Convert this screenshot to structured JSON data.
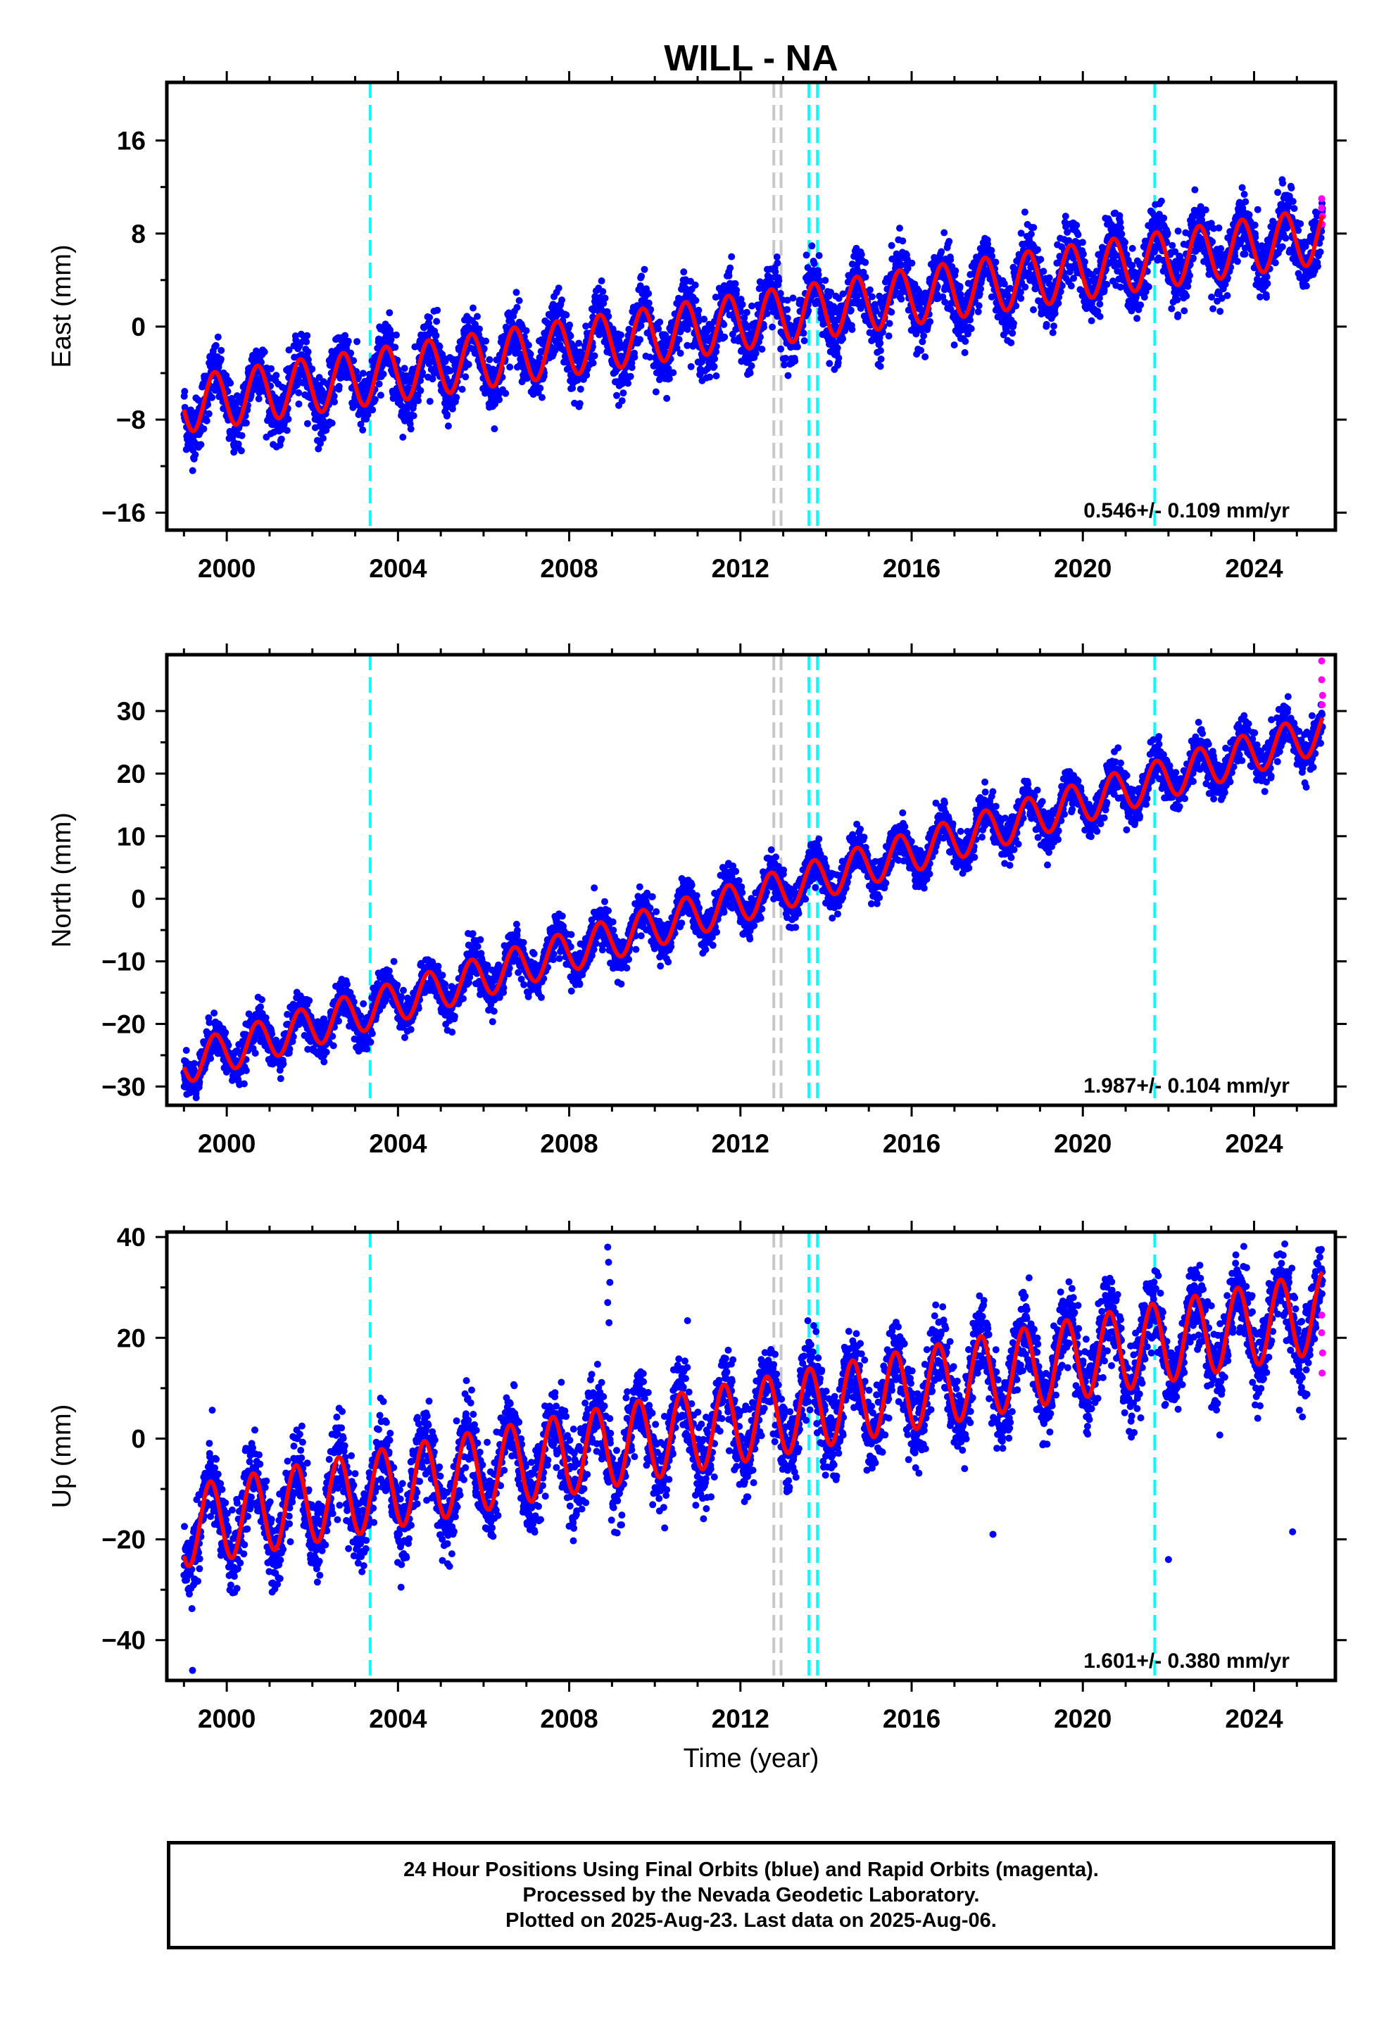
{
  "title": "WILL - NA",
  "colors": {
    "final_orbits": "#0000ff",
    "rapid_orbits": "#ff00ff",
    "model_fit": "#ff0000",
    "antenna_change": "#00ffff",
    "other_event": "#c8c8c8",
    "frame": "#000000"
  },
  "xlabel": "Time (year)",
  "x_ticks": [
    "2000",
    "2004",
    "2008",
    "2012",
    "2016",
    "2020",
    "2024"
  ],
  "footer": {
    "line1": "24 Hour Positions Using Final Orbits (blue) and Rapid Orbits (magenta).",
    "line2": "Processed by the Nevada Geodetic Laboratory.",
    "line3": "Plotted on 2025-Aug-23. Last data on 2025-Aug-06."
  },
  "chart_data": [
    {
      "type": "scatter",
      "ylabel": "East (mm)",
      "rate_text": "0.546+/- 0.109 mm/yr",
      "xlim": [
        1998.6,
        2025.9
      ],
      "ylim": [
        -17.5,
        21
      ],
      "y_ticks": [
        -16,
        -8,
        0,
        8,
        16
      ],
      "y_tick_labels": [
        "−16",
        "−8",
        "0",
        "8",
        "16"
      ],
      "vlines": [
        {
          "x": 2003.35,
          "color": "#00ffff"
        },
        {
          "x": 2012.78,
          "color": "#c8c8c8"
        },
        {
          "x": 2012.95,
          "color": "#c8c8c8"
        },
        {
          "x": 2013.6,
          "color": "#00ffff"
        },
        {
          "x": 2013.8,
          "color": "#00ffff"
        },
        {
          "x": 2021.68,
          "color": "#00ffff"
        }
      ],
      "model": {
        "offset": -6.7,
        "trend": 0.546,
        "t0": 1999.0,
        "amplitude": 2.4,
        "phase_year": 0.72
      },
      "scatter_spread": 1.3,
      "data_start": 1999.0,
      "data_end": 2025.6,
      "rapid_points": [
        {
          "x": 2025.58,
          "y": 11.0
        },
        {
          "x": 2025.58,
          "y": 10.2
        },
        {
          "x": 2025.6,
          "y": 9.5
        },
        {
          "x": 2025.59,
          "y": 8.8
        }
      ]
    },
    {
      "type": "scatter",
      "ylabel": "North (mm)",
      "rate_text": "1.987+/- 0.104 mm/yr",
      "xlim": [
        1998.6,
        2025.9
      ],
      "ylim": [
        -33,
        39
      ],
      "y_ticks": [
        -30,
        -20,
        -10,
        0,
        10,
        20,
        30
      ],
      "y_tick_labels": [
        "−30",
        "−20",
        "−10",
        "0",
        "10",
        "20",
        "30"
      ],
      "vlines": [
        {
          "x": 2003.35,
          "color": "#00ffff"
        },
        {
          "x": 2012.78,
          "color": "#c8c8c8"
        },
        {
          "x": 2012.95,
          "color": "#c8c8c8"
        },
        {
          "x": 2013.6,
          "color": "#00ffff"
        },
        {
          "x": 2013.8,
          "color": "#00ffff"
        },
        {
          "x": 2021.68,
          "color": "#00ffff"
        }
      ],
      "model": {
        "offset": -26.3,
        "trend": 1.987,
        "t0": 1999.0,
        "amplitude": 3.2,
        "phase_year": 0.72
      },
      "scatter_spread": 1.6,
      "data_start": 1999.0,
      "data_end": 2025.6,
      "rapid_points": [
        {
          "x": 2025.58,
          "y": 38.0
        },
        {
          "x": 2025.58,
          "y": 35.0
        },
        {
          "x": 2025.6,
          "y": 32.5
        },
        {
          "x": 2025.59,
          "y": 31.0
        }
      ]
    },
    {
      "type": "scatter",
      "ylabel": "Up (mm)",
      "rate_text": "1.601+/- 0.380 mm/yr",
      "xlim": [
        1998.6,
        2025.9
      ],
      "ylim": [
        -48,
        41
      ],
      "y_ticks": [
        -40,
        -20,
        0,
        20,
        40
      ],
      "y_tick_labels": [
        "−40",
        "−20",
        "0",
        "20",
        "40"
      ],
      "vlines": [
        {
          "x": 2003.35,
          "color": "#00ffff"
        },
        {
          "x": 2012.78,
          "color": "#c8c8c8"
        },
        {
          "x": 2012.95,
          "color": "#c8c8c8"
        },
        {
          "x": 2013.6,
          "color": "#00ffff"
        },
        {
          "x": 2013.8,
          "color": "#00ffff"
        },
        {
          "x": 2021.68,
          "color": "#00ffff"
        }
      ],
      "model": {
        "offset": -17.5,
        "trend": 1.601,
        "t0": 1999.0,
        "amplitude": 8.0,
        "phase_year": 0.62
      },
      "scatter_spread": 4.0,
      "data_start": 1999.0,
      "data_end": 2025.6,
      "rapid_points": [
        {
          "x": 2025.58,
          "y": 24.5
        },
        {
          "x": 2025.58,
          "y": 21.0
        },
        {
          "x": 2025.6,
          "y": 17.0
        },
        {
          "x": 2025.59,
          "y": 13.0
        }
      ],
      "outliers": [
        {
          "x": 2008.9,
          "y": 38.0
        },
        {
          "x": 2008.92,
          "y": 35.0
        },
        {
          "x": 2008.95,
          "y": 31.0
        },
        {
          "x": 2008.9,
          "y": 27.0
        },
        {
          "x": 2008.93,
          "y": 23.0
        },
        {
          "x": 2017.9,
          "y": -19.0
        },
        {
          "x": 2022.0,
          "y": -24.0
        },
        {
          "x": 2024.9,
          "y": -18.5
        },
        {
          "x": 1999.2,
          "y": -46.0
        }
      ]
    }
  ]
}
